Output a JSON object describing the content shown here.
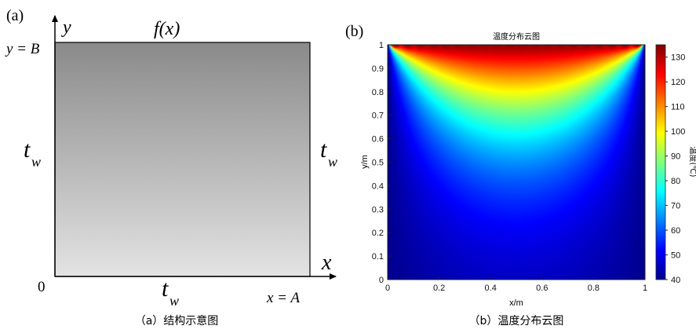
{
  "panel_a": {
    "tag": "(a)",
    "y_axis": "y",
    "x_axis": "x",
    "top_bc": "f(x)",
    "y_eq": "y = B",
    "x_eq": "x = A",
    "origin": "0",
    "wall_t": "t",
    "wall_sub": "w",
    "caption": "（a）结构示意图"
  },
  "panel_b": {
    "tag": "(b)",
    "caption": "（b）温度分布云图"
  },
  "chart_data": {
    "type": "heatmap",
    "title": "温度分布云图",
    "xlabel": "x/m",
    "ylabel": "y/m",
    "xlim": [
      0,
      1
    ],
    "ylim": [
      0,
      1
    ],
    "x_ticks": [
      "0",
      "0.2",
      "0.4",
      "0.6",
      "0.8",
      "1"
    ],
    "y_ticks": [
      "0",
      "0.1",
      "0.2",
      "0.3",
      "0.4",
      "0.5",
      "0.6",
      "0.7",
      "0.8",
      "0.9",
      "1"
    ],
    "colorbar": {
      "label": "温度(℃)",
      "range": [
        40,
        135
      ],
      "ticks": [
        "40",
        "50",
        "60",
        "70",
        "80",
        "90",
        "100",
        "110",
        "120",
        "130"
      ]
    },
    "colormap": "jet"
  }
}
